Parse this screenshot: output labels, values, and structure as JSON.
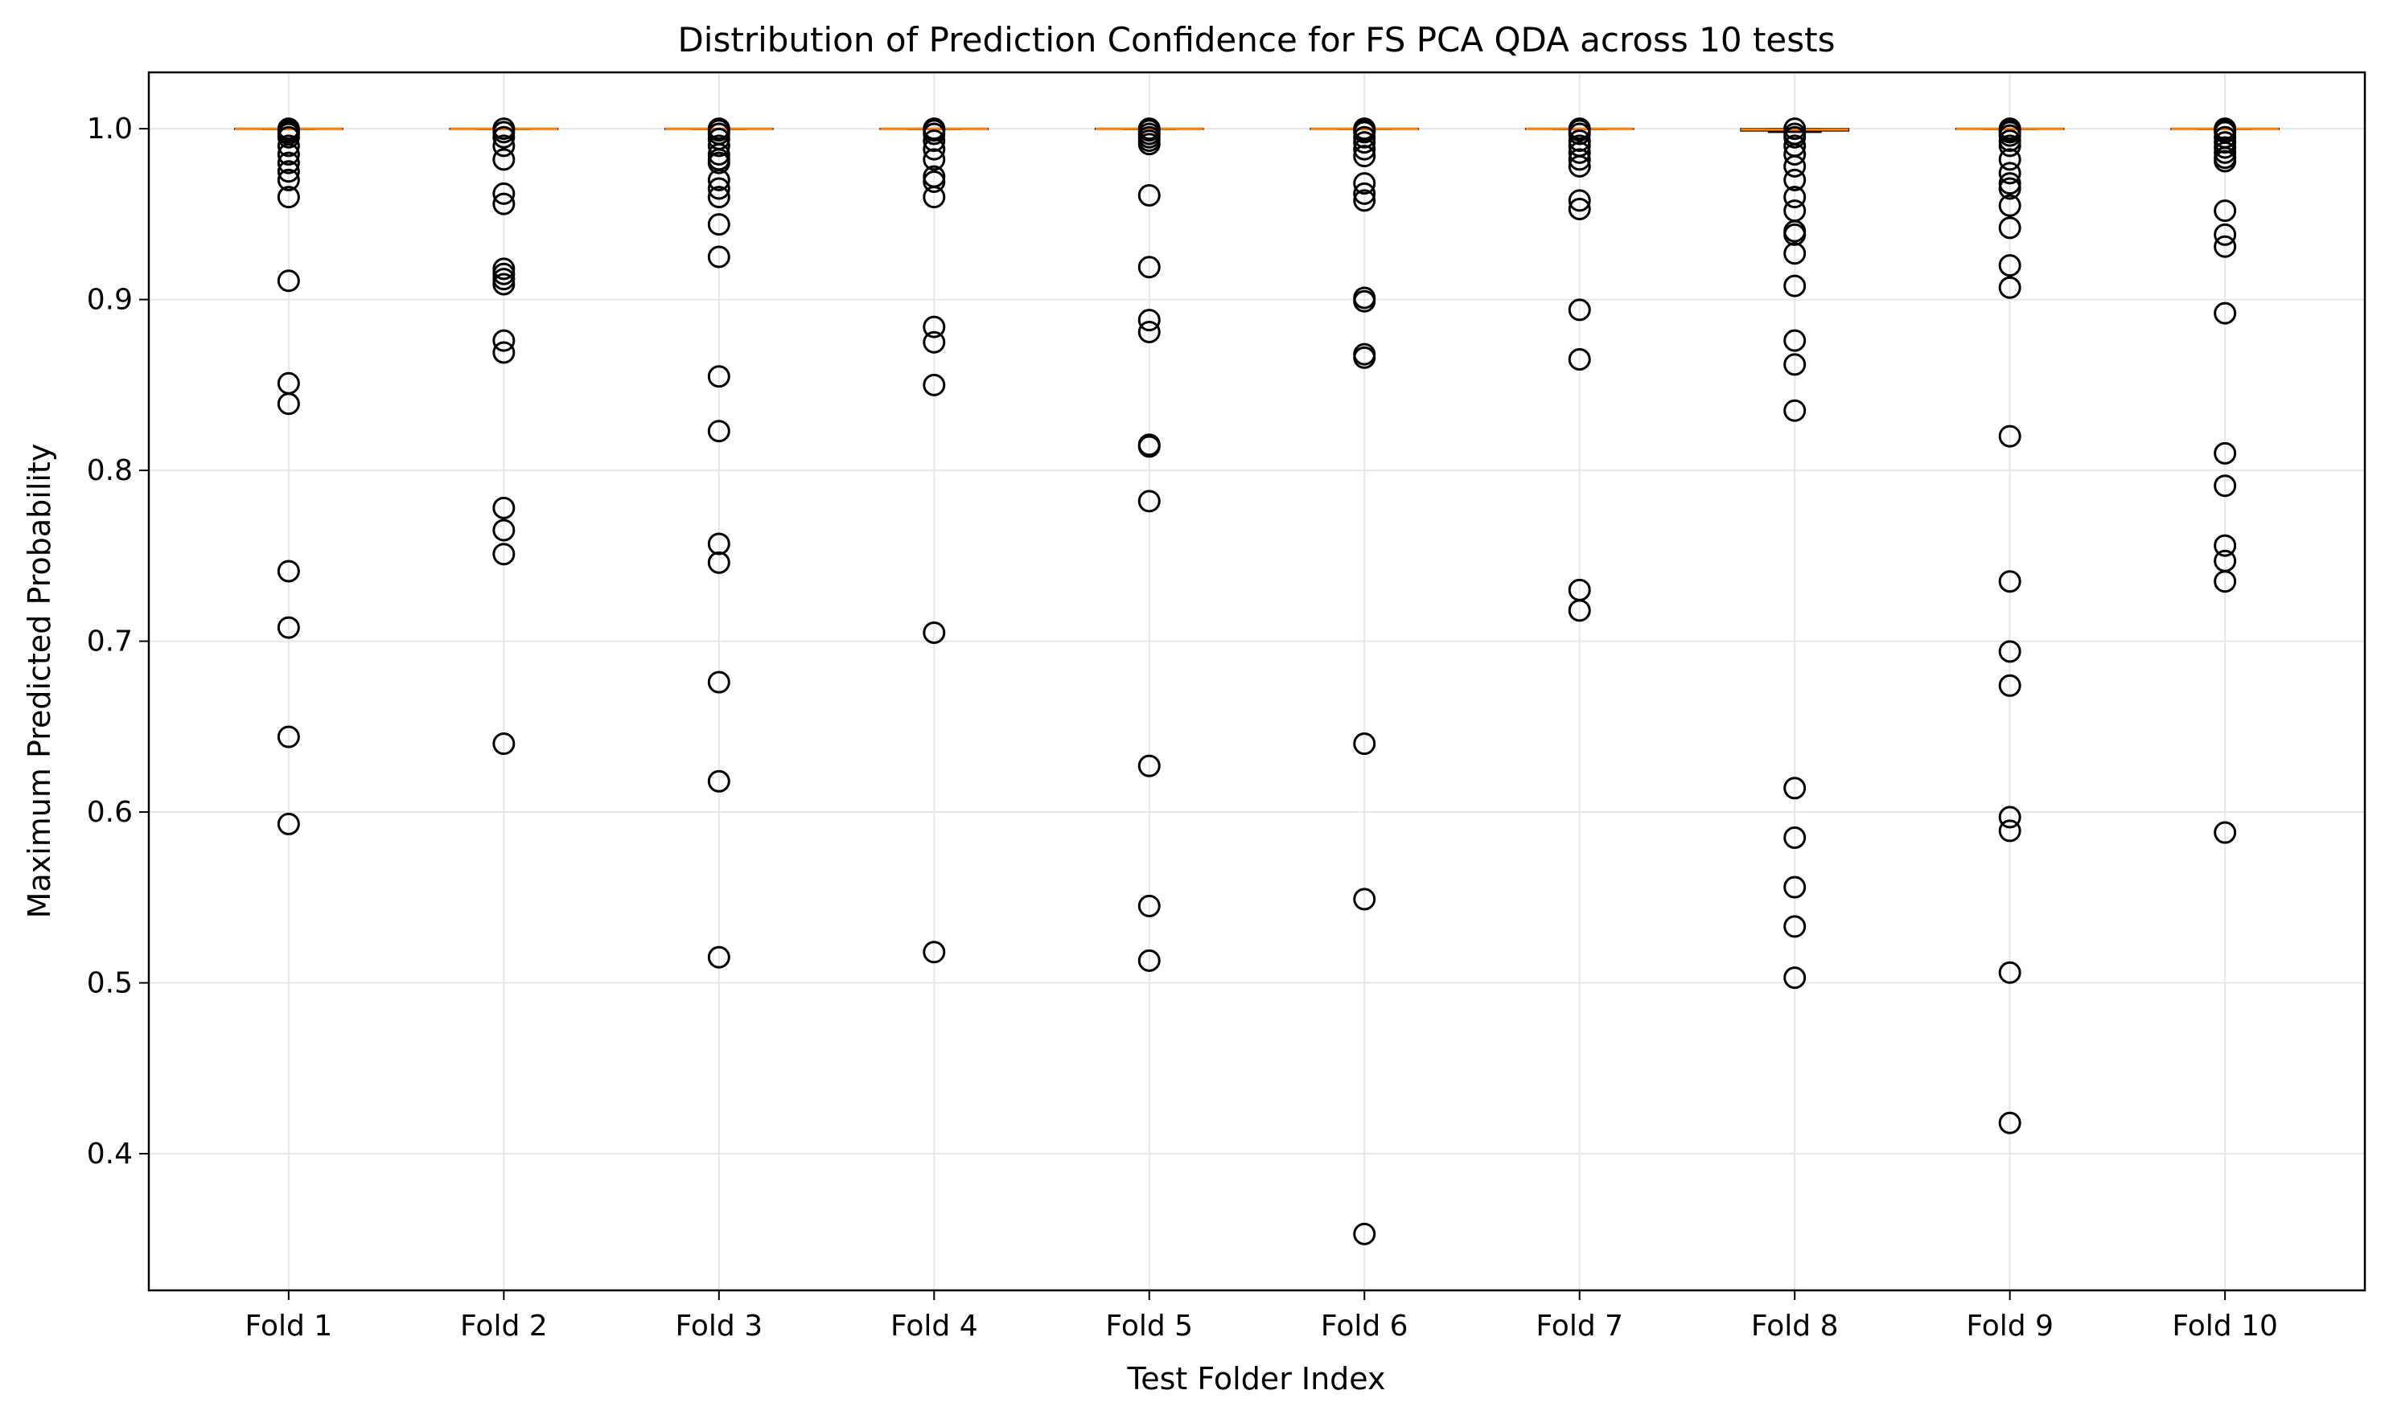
{
  "chart_data": {
    "type": "box",
    "title": "Distribution of Prediction Confidence for FS PCA QDA across 10 tests",
    "xlabel": "Test Folder Index",
    "ylabel": "Maximum Predicted Probability",
    "categories": [
      "Fold 1",
      "Fold 2",
      "Fold 3",
      "Fold 4",
      "Fold 5",
      "Fold 6",
      "Fold 7",
      "Fold 8",
      "Fold 9",
      "Fold 10"
    ],
    "ylim": [
      0.32,
      1.033
    ],
    "yticks": [
      0.4,
      0.5,
      0.6,
      0.7,
      0.8,
      0.9,
      1.0
    ],
    "ytick_labels": [
      "0.4",
      "0.5",
      "0.6",
      "0.7",
      "0.8",
      "0.9",
      "1.0"
    ],
    "grid": true,
    "colors": {
      "median": "#ff7f0e",
      "box": "#000000",
      "outlier": "#000000",
      "grid": "#e6e6e6"
    },
    "boxes": [
      {
        "q1": 0.9999,
        "median": 1.0,
        "q3": 1.0,
        "whisker_low": 0.9997,
        "whisker_high": 1.0,
        "outliers": [
          1.0,
          0.999,
          0.998,
          0.997,
          0.995,
          0.99,
          0.985,
          0.98,
          0.975,
          0.97,
          0.96,
          0.911,
          0.851,
          0.839,
          0.741,
          0.708,
          0.644,
          0.593
        ]
      },
      {
        "q1": 0.9999,
        "median": 1.0,
        "q3": 1.0,
        "whisker_low": 0.9997,
        "whisker_high": 1.0,
        "outliers": [
          1.0,
          0.998,
          0.995,
          0.99,
          0.982,
          0.962,
          0.956,
          0.918,
          0.915,
          0.912,
          0.909,
          0.876,
          0.869,
          0.778,
          0.765,
          0.751,
          0.64
        ]
      },
      {
        "q1": 0.9999,
        "median": 1.0,
        "q3": 1.0,
        "whisker_low": 0.9997,
        "whisker_high": 1.0,
        "outliers": [
          1.0,
          0.999,
          0.997,
          0.994,
          0.99,
          0.985,
          0.982,
          0.98,
          0.97,
          0.965,
          0.96,
          0.944,
          0.925,
          0.855,
          0.823,
          0.757,
          0.746,
          0.676,
          0.618,
          0.515
        ]
      },
      {
        "q1": 0.9999,
        "median": 1.0,
        "q3": 1.0,
        "whisker_low": 0.9997,
        "whisker_high": 1.0,
        "outliers": [
          1.0,
          0.999,
          0.997,
          0.993,
          0.988,
          0.982,
          0.972,
          0.969,
          0.96,
          0.884,
          0.875,
          0.85,
          0.705,
          0.518
        ]
      },
      {
        "q1": 0.9999,
        "median": 1.0,
        "q3": 1.0,
        "whisker_low": 0.9997,
        "whisker_high": 1.0,
        "outliers": [
          1.0,
          0.999,
          0.997,
          0.995,
          0.993,
          0.991,
          0.961,
          0.919,
          0.888,
          0.881,
          0.815,
          0.814,
          0.782,
          0.627,
          0.545,
          0.513
        ]
      },
      {
        "q1": 0.9999,
        "median": 1.0,
        "q3": 1.0,
        "whisker_low": 0.9997,
        "whisker_high": 1.0,
        "outliers": [
          1.0,
          0.999,
          0.998,
          0.995,
          0.992,
          0.988,
          0.984,
          0.968,
          0.962,
          0.958,
          0.901,
          0.899,
          0.868,
          0.866,
          0.64,
          0.549,
          0.353
        ]
      },
      {
        "q1": 0.9999,
        "median": 1.0,
        "q3": 1.0,
        "whisker_low": 0.9997,
        "whisker_high": 1.0,
        "outliers": [
          1.0,
          0.999,
          0.997,
          0.993,
          0.99,
          0.986,
          0.982,
          0.978,
          0.958,
          0.953,
          0.894,
          0.865,
          0.73,
          0.718
        ]
      },
      {
        "q1": 0.9988,
        "median": 0.9995,
        "q3": 1.0,
        "whisker_low": 0.998,
        "whisker_high": 1.0,
        "outliers": [
          1.0,
          0.997,
          0.995,
          0.99,
          0.985,
          0.978,
          0.97,
          0.96,
          0.952,
          0.94,
          0.938,
          0.927,
          0.908,
          0.876,
          0.862,
          0.835,
          0.614,
          0.585,
          0.556,
          0.533,
          0.503
        ]
      },
      {
        "q1": 0.9999,
        "median": 1.0,
        "q3": 1.0,
        "whisker_low": 0.9997,
        "whisker_high": 1.0,
        "outliers": [
          1.0,
          0.999,
          0.998,
          0.996,
          0.993,
          0.99,
          0.982,
          0.974,
          0.968,
          0.965,
          0.955,
          0.942,
          0.92,
          0.907,
          0.82,
          0.735,
          0.694,
          0.674,
          0.597,
          0.589,
          0.506,
          0.418
        ]
      },
      {
        "q1": 0.9999,
        "median": 1.0,
        "q3": 1.0,
        "whisker_low": 0.9997,
        "whisker_high": 1.0,
        "outliers": [
          1.0,
          0.999,
          0.998,
          0.995,
          0.992,
          0.989,
          0.986,
          0.983,
          0.981,
          0.952,
          0.938,
          0.931,
          0.892,
          0.81,
          0.791,
          0.756,
          0.747,
          0.735,
          0.588
        ]
      }
    ]
  }
}
